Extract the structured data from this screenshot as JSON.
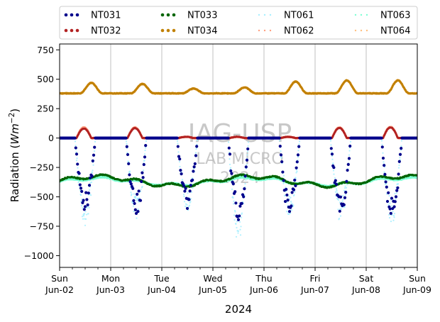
{
  "chart_data": {
    "type": "scatter",
    "title": "",
    "xlabel": "2024",
    "ylabel": "Radiation (",
    "ylabel_unit_base": "Wm",
    "ylabel_unit_exp": "−2",
    "ylabel_close": ")",
    "ylim": [
      -1100,
      800
    ],
    "xlim": [
      "2024-06-02 00:00",
      "2024-06-09 00:00"
    ],
    "yticks": [
      {
        "value": 750,
        "label": "750"
      },
      {
        "value": 500,
        "label": "500"
      },
      {
        "value": 250,
        "label": "250"
      },
      {
        "value": 0,
        "label": "0"
      },
      {
        "value": -250,
        "label": "−250"
      },
      {
        "value": -500,
        "label": "−500"
      },
      {
        "value": -750,
        "label": "−750"
      },
      {
        "value": -1000,
        "label": "−1000"
      }
    ],
    "xticks": [
      {
        "day": 0,
        "weekday": "Sun",
        "date": "Jun-02"
      },
      {
        "day": 1,
        "weekday": "Mon",
        "date": "Jun-03"
      },
      {
        "day": 2,
        "weekday": "Tue",
        "date": "Jun-04"
      },
      {
        "day": 3,
        "weekday": "Wed",
        "date": "Jun-05"
      },
      {
        "day": 4,
        "weekday": "Thu",
        "date": "Jun-06"
      },
      {
        "day": 5,
        "weekday": "Fri",
        "date": "Jun-07"
      },
      {
        "day": 6,
        "weekday": "Sat",
        "date": "Jun-08"
      },
      {
        "day": 7,
        "weekday": "Sun",
        "date": "Jun-09"
      }
    ],
    "grid": "x-major",
    "legend_position": "top, outside, 4 columns",
    "watermark": [
      "IAG-USP",
      "LAB MICRO",
      "2024"
    ],
    "series": [
      {
        "name": "NT031",
        "color": "#00008b",
        "style": "dots-large",
        "description_values": {
          "night": [
            0,
            0
          ],
          "day_min_by_date": {
            "Jun-02": -620,
            "Jun-03": -640,
            "Jun-04": -580,
            "Jun-05": -700,
            "Jun-06": -650,
            "Jun-07": -660,
            "Jun-08": -680
          }
        }
      },
      {
        "name": "NT032",
        "color": "#b22222",
        "style": "dots-large",
        "description_values": {
          "night": [
            0,
            0
          ],
          "day_max_by_date": {
            "Jun-02": 80,
            "Jun-03": 85,
            "Jun-04": 10,
            "Jun-05": 10,
            "Jun-06": 10,
            "Jun-07": 85,
            "Jun-08": 90
          }
        }
      },
      {
        "name": "NT033",
        "color": "#006400",
        "style": "dots-large",
        "description_values": {
          "range": [
            -420,
            -310
          ]
        }
      },
      {
        "name": "NT034",
        "color": "#c08000",
        "style": "dots-large",
        "description_values": {
          "night": 380,
          "day_max_by_date": {
            "Jun-02": 470,
            "Jun-03": 460,
            "Jun-04": 420,
            "Jun-05": 430,
            "Jun-06": 480,
            "Jun-07": 490,
            "Jun-08": 490
          }
        }
      },
      {
        "name": "NT061",
        "color": "#a8f0ff",
        "style": "dots-small",
        "description_values": {
          "night": 0,
          "day_min_by_date": {
            "Jun-02": -720,
            "Jun-03": -660,
            "Jun-04": -600,
            "Jun-05": -860,
            "Jun-06": -660,
            "Jun-07": -690,
            "Jun-08": -700
          }
        }
      },
      {
        "name": "NT062",
        "color": "#ff9f80",
        "style": "dots-small",
        "description_values": {
          "night": 0,
          "day_max_by_date": {
            "Jun-02": 90,
            "Jun-03": 90,
            "Jun-04": 10,
            "Jun-05": 10,
            "Jun-06": 10,
            "Jun-07": 90,
            "Jun-08": 95
          }
        }
      },
      {
        "name": "NT063",
        "color": "#7fffd4",
        "style": "dots-small",
        "description_values": {
          "range": [
            -410,
            -330
          ]
        }
      },
      {
        "name": "NT064",
        "color": "#ffc080",
        "style": "dots-small",
        "description_values": {
          "night": 380,
          "day_max_by_date": {
            "Jun-02": 470,
            "Jun-03": 460,
            "Jun-04": 420,
            "Jun-05": 430,
            "Jun-06": 480,
            "Jun-07": 490,
            "Jun-08": 490
          }
        }
      }
    ]
  }
}
